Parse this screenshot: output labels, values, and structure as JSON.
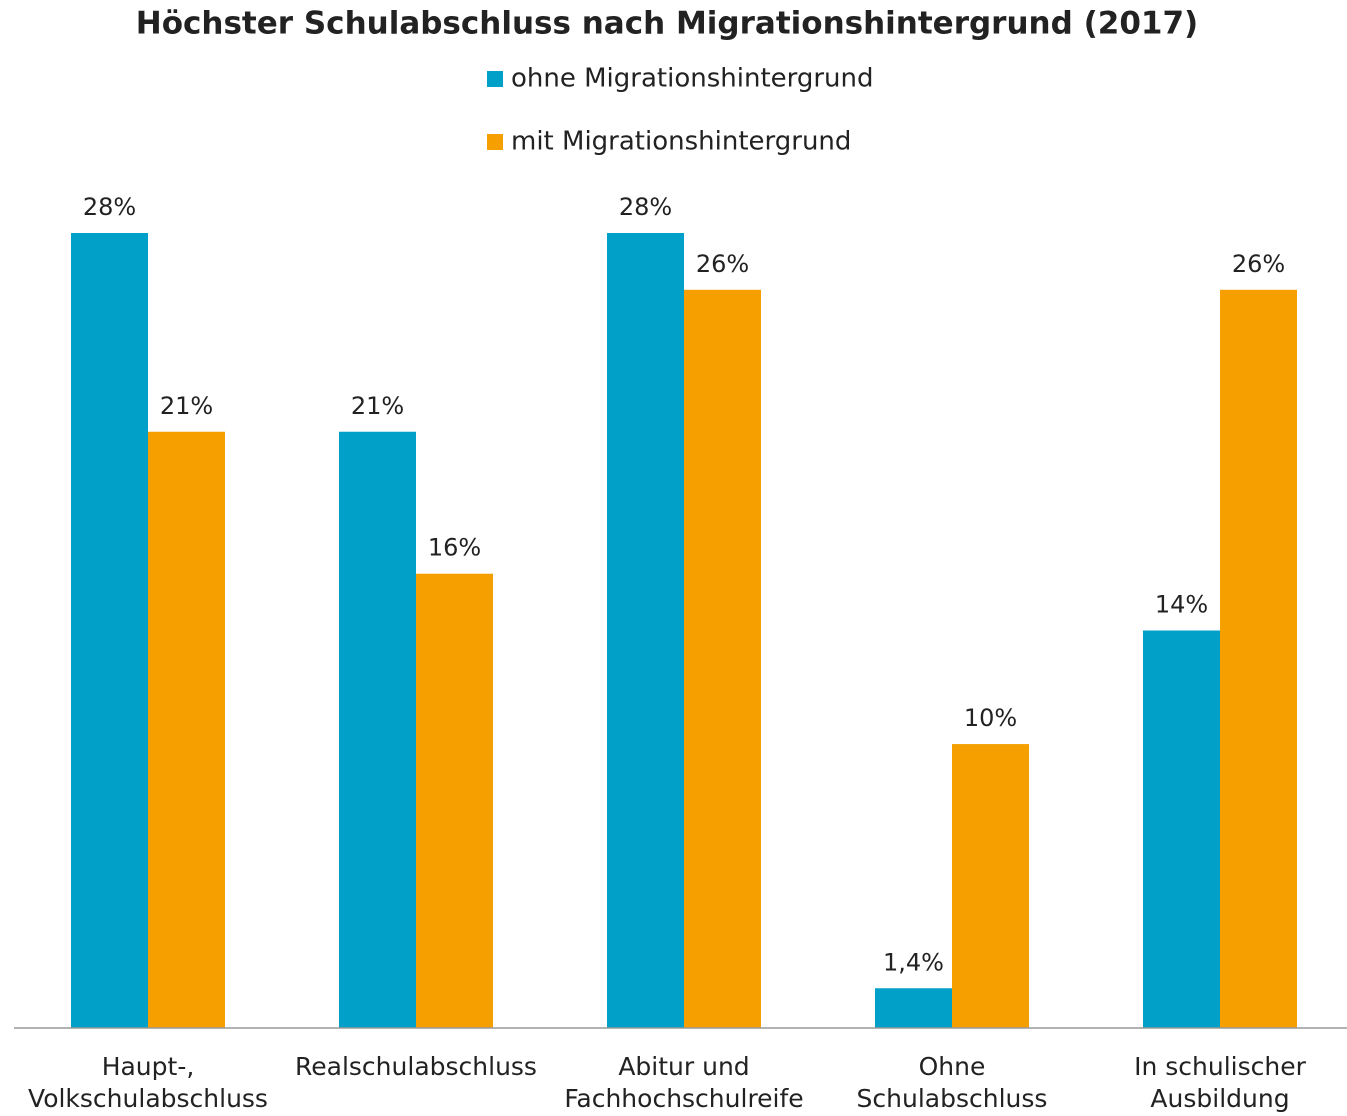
{
  "chart_data": {
    "type": "bar",
    "title": "Höchster Schulabschluss nach Migrationshintergrund (2017)",
    "categories": [
      "Haupt-,\nVolkschulabschluss",
      "Realschulabschluss",
      "Abitur und\nFachhochschulreife",
      "Ohne\nSchulabschluss",
      "In schulischer\nAusbildung"
    ],
    "series": [
      {
        "name": "ohne Migrationshintergrund",
        "color": "#00a0c8",
        "values": [
          28,
          21,
          28,
          1.4,
          14
        ],
        "value_labels": [
          "28%",
          "21%",
          "28%",
          "1,4%",
          "14%"
        ]
      },
      {
        "name": "mit Migrationshintergrund",
        "color": "#f5a000",
        "values": [
          21,
          16,
          26,
          10,
          26
        ],
        "value_labels": [
          "21%",
          "16%",
          "26%",
          "10%",
          "26%"
        ]
      }
    ]
  }
}
